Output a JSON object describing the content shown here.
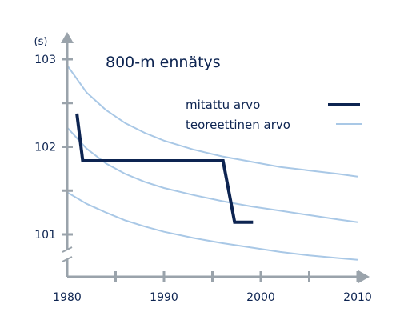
{
  "chart_data": {
    "type": "line",
    "title": "800-m ennätys",
    "ylabel": "(s)",
    "xlabel": "",
    "xlim": [
      1980,
      2010
    ],
    "ylim": [
      100.6,
      103.1
    ],
    "xticks": [
      1980,
      1985,
      1990,
      1995,
      2000,
      2005,
      2010
    ],
    "xtick_labels": [
      "1980",
      "",
      "1990",
      "",
      "2000",
      "",
      "2010"
    ],
    "yticks": [
      101,
      101.5,
      102,
      102.5,
      103
    ],
    "ytick_labels": [
      "101",
      "",
      "102",
      "",
      "103"
    ],
    "axis_break": true,
    "grid": false,
    "legend": {
      "position": "right",
      "entries": [
        {
          "label": "mitattu arvo",
          "color": "#0d2451",
          "style": "thick"
        },
        {
          "label": "teoreettinen arvo",
          "color": "#a9c8e6",
          "style": "thin"
        }
      ]
    },
    "series": [
      {
        "name": "mitattu arvo",
        "color": "#0d2451",
        "points": [
          [
            1981,
            102.38
          ],
          [
            1981.6,
            101.84
          ],
          [
            1996.1,
            101.84
          ],
          [
            1997.3,
            101.14
          ],
          [
            1999.2,
            101.14
          ]
        ]
      },
      {
        "name": "teoreettinen arvo",
        "color": "#a9c8e6",
        "curves": [
          {
            "points": [
              [
                1980,
                102.93
              ],
              [
                1982,
                102.62
              ],
              [
                1984,
                102.42
              ],
              [
                1986,
                102.27
              ],
              [
                1988,
                102.16
              ],
              [
                1990,
                102.07
              ],
              [
                1993,
                101.97
              ],
              [
                1996,
                101.89
              ],
              [
                1999,
                101.83
              ],
              [
                2002,
                101.77
              ],
              [
                2005,
                101.73
              ],
              [
                2008,
                101.69
              ],
              [
                2010,
                101.66
              ]
            ]
          },
          {
            "points": [
              [
                1980,
                102.22
              ],
              [
                1982,
                101.98
              ],
              [
                1984,
                101.81
              ],
              [
                1986,
                101.69
              ],
              [
                1988,
                101.6
              ],
              [
                1990,
                101.53
              ],
              [
                1993,
                101.45
              ],
              [
                1996,
                101.38
              ],
              [
                1999,
                101.32
              ],
              [
                2002,
                101.27
              ],
              [
                2005,
                101.22
              ],
              [
                2008,
                101.17
              ],
              [
                2010,
                101.14
              ]
            ]
          },
          {
            "points": [
              [
                1980,
                101.48
              ],
              [
                1982,
                101.35
              ],
              [
                1984,
                101.25
              ],
              [
                1986,
                101.16
              ],
              [
                1988,
                101.09
              ],
              [
                1990,
                101.03
              ],
              [
                1993,
                100.96
              ],
              [
                1996,
                100.9
              ],
              [
                1999,
                100.85
              ],
              [
                2002,
                100.8
              ],
              [
                2005,
                100.76
              ],
              [
                2008,
                100.73
              ],
              [
                2010,
                100.71
              ]
            ]
          }
        ]
      }
    ]
  },
  "colors": {
    "axis": "#9aa3ab",
    "text": "#0d2451",
    "measured": "#0d2451",
    "theoretical": "#a9c8e6"
  }
}
